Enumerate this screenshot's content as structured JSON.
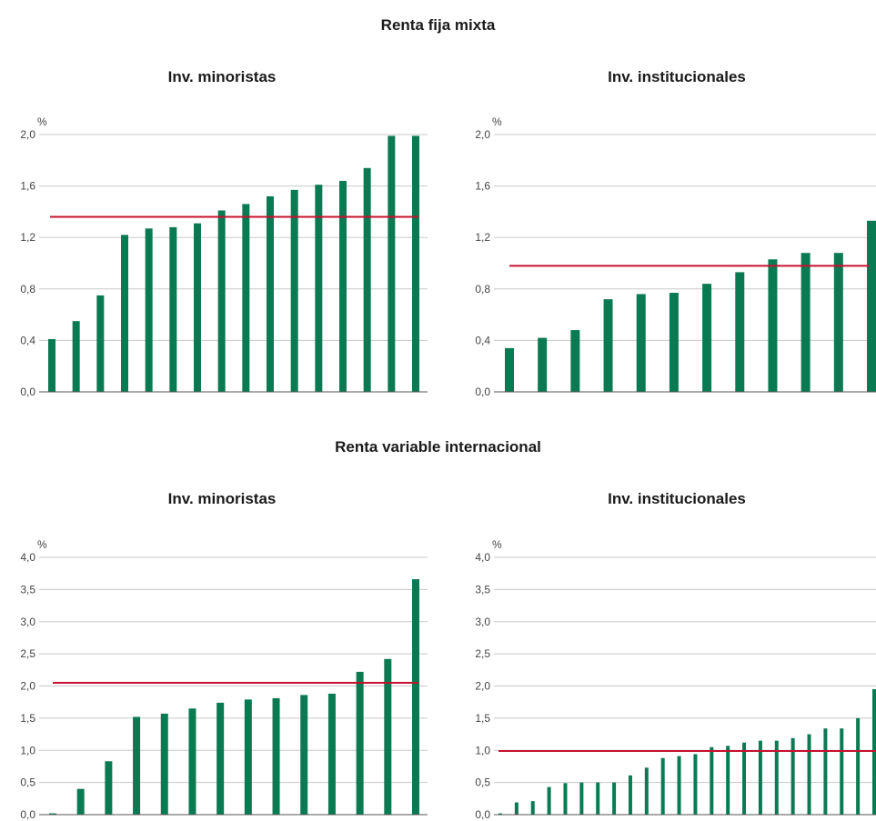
{
  "sections": [
    {
      "title": "Renta fija mixta"
    },
    {
      "title": "Renta variable internacional"
    }
  ],
  "colors": {
    "bar": "#0a7a52",
    "average_line": "#c8102e",
    "grid": "#c8c8c8",
    "axis": "#555555"
  },
  "chart_data": [
    {
      "type": "bar",
      "section": "Renta fija mixta",
      "title": "Inv. minoristas",
      "ylabel": "%",
      "ylim": [
        0,
        2.0
      ],
      "ticks": [
        "0,0",
        "0,4",
        "0,8",
        "1,2",
        "1,6",
        "2,0"
      ],
      "tick_values": [
        0,
        0.4,
        0.8,
        1.2,
        1.6,
        2.0
      ],
      "values": [
        0.41,
        0.55,
        0.75,
        1.22,
        1.27,
        1.28,
        1.31,
        1.41,
        1.46,
        1.52,
        1.57,
        1.61,
        1.64,
        1.74,
        1.99,
        1.99
      ],
      "average": 1.36,
      "grid": true
    },
    {
      "type": "bar",
      "section": "Renta fija mixta",
      "title": "Inv. institucionales",
      "ylabel": "%",
      "ylim": [
        0,
        2.0
      ],
      "ticks": [
        "0,0",
        "0,4",
        "0,8",
        "1,2",
        "1,6",
        "2,0"
      ],
      "tick_values": [
        0,
        0.4,
        0.8,
        1.2,
        1.6,
        2.0
      ],
      "values": [
        0.34,
        0.42,
        0.48,
        0.72,
        0.76,
        0.77,
        0.84,
        0.93,
        1.03,
        1.08,
        1.08,
        1.33
      ],
      "average": 0.98,
      "grid": true
    },
    {
      "type": "bar",
      "section": "Renta variable internacional",
      "title": "Inv. minoristas",
      "ylabel": "%",
      "ylim": [
        0,
        4.0
      ],
      "ticks": [
        "0,0",
        "0,5",
        "1,0",
        "1,5",
        "2,0",
        "2,5",
        "3,0",
        "3,5",
        "4,0"
      ],
      "tick_values": [
        0,
        0.5,
        1.0,
        1.5,
        2.0,
        2.5,
        3.0,
        3.5,
        4.0
      ],
      "values": [
        0.02,
        0.4,
        0.83,
        1.52,
        1.57,
        1.65,
        1.74,
        1.79,
        1.81,
        1.86,
        1.88,
        2.22,
        2.42,
        3.66
      ],
      "average": 2.05,
      "grid": true
    },
    {
      "type": "bar",
      "section": "Renta variable internacional",
      "title": "Inv. institucionales",
      "ylabel": "%",
      "ylim": [
        0,
        4.0
      ],
      "ticks": [
        "0,0",
        "0,5",
        "1,0",
        "1,5",
        "2,0",
        "2,5",
        "3,0",
        "3,5",
        "4,0"
      ],
      "tick_values": [
        0,
        0.5,
        1.0,
        1.5,
        2.0,
        2.5,
        3.0,
        3.5,
        4.0
      ],
      "values": [
        0.02,
        0.19,
        0.21,
        0.43,
        0.49,
        0.5,
        0.5,
        0.5,
        0.61,
        0.73,
        0.88,
        0.91,
        0.94,
        1.05,
        1.07,
        1.12,
        1.15,
        1.15,
        1.19,
        1.25,
        1.34,
        1.34,
        1.5,
        1.95
      ],
      "average": 0.99,
      "grid": true
    }
  ]
}
